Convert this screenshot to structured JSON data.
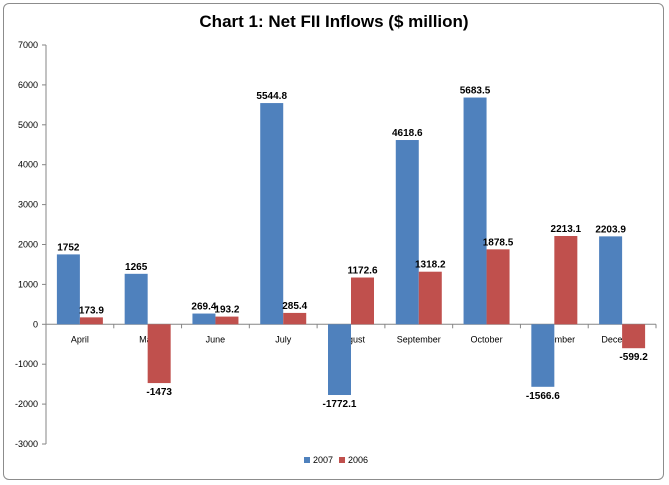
{
  "chart_data": {
    "type": "bar",
    "title": "Chart 1: Net FII Inflows ($ million)",
    "xlabel": "",
    "ylabel": "",
    "ylim": [
      -3000,
      7000
    ],
    "yticks": [
      7000,
      6000,
      5000,
      4000,
      3000,
      2000,
      1000,
      0,
      -1000,
      -2000,
      -3000
    ],
    "grid": false,
    "legend_position": "bottom",
    "categories": [
      "April",
      "May",
      "June",
      "July",
      "August",
      "September",
      "October",
      "November",
      "December"
    ],
    "series": [
      {
        "name": "2007",
        "color": "#4f81bd",
        "values": [
          1752,
          1265,
          269.4,
          5544.8,
          -1772.1,
          4618.6,
          5683.5,
          -1566.6,
          2203.9
        ],
        "labels": [
          "1752",
          "1265",
          "269.4",
          "5544.8",
          "-1772.1",
          "4618.6",
          "5683.5",
          "-1566.6",
          "2203.9"
        ]
      },
      {
        "name": "2006",
        "color": "#c0504d",
        "values": [
          173.9,
          -1473,
          193.2,
          285.4,
          1172.6,
          1318.2,
          1878.5,
          2213.1,
          -599.2
        ],
        "labels": [
          "173.9",
          "-1473",
          "193.2",
          "285.4",
          "1172.6",
          "1318.2",
          "1878.5",
          "2213.1",
          "-599.2"
        ]
      }
    ]
  }
}
